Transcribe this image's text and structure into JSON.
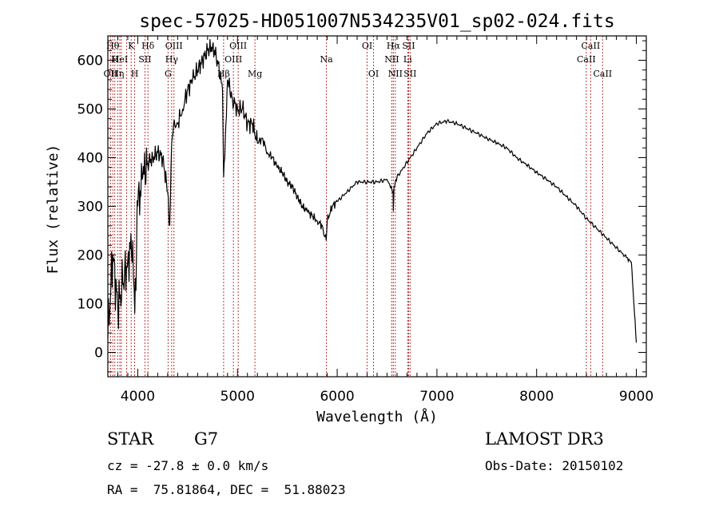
{
  "chart_data": {
    "type": "line",
    "title": "spec-57025-HD051007N534235V01_sp02-024.fits",
    "xlabel": "Wavelength (Å)",
    "ylabel": "Flux (relative)",
    "xlim": [
      3700,
      9100
    ],
    "ylim": [
      -50,
      650
    ],
    "x_ticks": [
      4000,
      5000,
      6000,
      7000,
      8000,
      9000
    ],
    "y_ticks": [
      0,
      100,
      200,
      300,
      400,
      500,
      600
    ],
    "grid": false,
    "line_color": "#000000",
    "marker_color": "#b22222",
    "series": [
      {
        "x": [
          3700,
          3750,
          3800,
          3850,
          3900,
          3950,
          3970,
          4000,
          4050,
          4100,
          4150,
          4200,
          4250,
          4300,
          4320,
          4340,
          4360,
          4400,
          4450,
          4500,
          4550,
          4600,
          4650,
          4700,
          4750,
          4800,
          4850,
          4861,
          4900,
          4950,
          5000,
          5050,
          5100,
          5150,
          5200,
          5250,
          5300,
          5350,
          5400,
          5450,
          5500,
          5550,
          5600,
          5650,
          5700,
          5750,
          5800,
          5850,
          5890,
          5900,
          5950,
          6000,
          6100,
          6200,
          6300,
          6400,
          6500,
          6560,
          6563,
          6570,
          6600,
          6700,
          6800,
          6900,
          7000,
          7100,
          7200,
          7300,
          7400,
          7500,
          7600,
          7700,
          7800,
          7900,
          8000,
          8100,
          8200,
          8300,
          8400,
          8500,
          8600,
          8700,
          8800,
          8900,
          8950,
          9000
        ],
        "y": [
          30,
          200,
          90,
          140,
          190,
          230,
          80,
          300,
          360,
          390,
          400,
          410,
          400,
          330,
          260,
          430,
          470,
          470,
          500,
          540,
          560,
          580,
          600,
          620,
          630,
          600,
          540,
          360,
          560,
          520,
          500,
          500,
          470,
          470,
          430,
          440,
          410,
          400,
          380,
          370,
          350,
          340,
          320,
          300,
          290,
          280,
          270,
          260,
          230,
          270,
          300,
          310,
          330,
          350,
          350,
          350,
          355,
          330,
          290,
          340,
          360,
          390,
          420,
          450,
          470,
          475,
          470,
          460,
          450,
          440,
          430,
          420,
          400,
          385,
          370,
          355,
          340,
          320,
          300,
          275,
          255,
          235,
          215,
          195,
          185,
          20
        ]
      }
    ],
    "lines": [
      {
        "x": 3727,
        "label": "OII",
        "row": 2
      },
      {
        "x": 3750,
        "label": "Hθ",
        "row": 0
      },
      {
        "x": 3770,
        "label": "H",
        "row": 1
      },
      {
        "x": 3798,
        "label": "Hη",
        "row": 2
      },
      {
        "x": 3820,
        "label": "HeI",
        "row": 1
      },
      {
        "x": 3835,
        "label": "",
        "row": 0
      },
      {
        "x": 3889,
        "label": "",
        "row": 0
      },
      {
        "x": 3934,
        "label": "K",
        "row": 0
      },
      {
        "x": 3969,
        "label": "H",
        "row": 2
      },
      {
        "x": 4072,
        "label": "SII",
        "row": 1
      },
      {
        "x": 4102,
        "label": "Hδ",
        "row": 0
      },
      {
        "x": 4304,
        "label": "G",
        "row": 2
      },
      {
        "x": 4340,
        "label": "Hγ",
        "row": 1
      },
      {
        "x": 4363,
        "label": "OIII",
        "row": 0
      },
      {
        "x": 4861,
        "label": "Hβ",
        "row": 2
      },
      {
        "x": 4959,
        "label": "OIII",
        "row": 1
      },
      {
        "x": 5007,
        "label": "OIII",
        "row": 0
      },
      {
        "x": 5175,
        "label": "Mg",
        "row": 2
      },
      {
        "x": 5892,
        "label": "Na",
        "row": 1
      },
      {
        "x": 6300,
        "label": "OI",
        "row": 0
      },
      {
        "x": 6364,
        "label": "OI",
        "row": 2
      },
      {
        "x": 6548,
        "label": "NII",
        "row": 1
      },
      {
        "x": 6563,
        "label": "Hα",
        "row": 0
      },
      {
        "x": 6583,
        "label": "NII",
        "row": 2
      },
      {
        "x": 6707,
        "label": "Li",
        "row": 1
      },
      {
        "x": 6716,
        "label": "SII",
        "row": 0
      },
      {
        "x": 6731,
        "label": "SII",
        "row": 2
      },
      {
        "x": 8498,
        "label": "CaII",
        "row": 1
      },
      {
        "x": 8542,
        "label": "CaII",
        "row": 0
      },
      {
        "x": 8662,
        "label": "CaII",
        "row": 2
      }
    ]
  },
  "info": {
    "class": "STAR",
    "subclass": "G7",
    "survey": "LAMOST DR3",
    "cz": "cz = -27.8 ± 0.0 km/s",
    "obs_date": "Obs-Date: 20150102",
    "coords": "RA =  75.81864, DEC =  51.88023"
  }
}
